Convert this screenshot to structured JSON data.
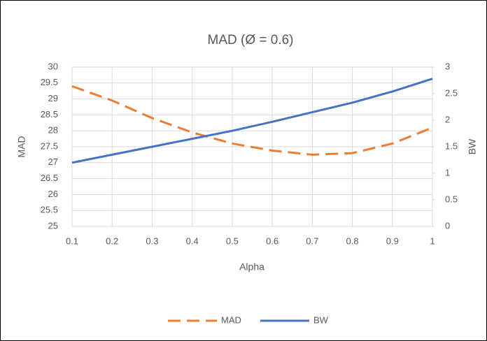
{
  "chart_data": {
    "type": "line",
    "title": "MAD (Ø = 0.6)",
    "x_label": "Alpha",
    "y_label": "MAD",
    "y2_label": "BW",
    "x": [
      0.1,
      0.2,
      0.3,
      0.4,
      0.5,
      0.6,
      0.7,
      0.8,
      0.9,
      1
    ],
    "xlim": [
      0.1,
      1
    ],
    "xticks": [
      0.1,
      0.2,
      0.3,
      0.4,
      0.5,
      0.6,
      0.7,
      0.8,
      0.9,
      1
    ],
    "ylim": [
      25,
      30
    ],
    "yticks": [
      25,
      25.5,
      26,
      26.5,
      27,
      27.5,
      28,
      28.5,
      29,
      29.5,
      30
    ],
    "y2lim": [
      0,
      3
    ],
    "y2ticks": [
      0,
      0.5,
      1,
      1.5,
      2,
      2.5,
      3
    ],
    "grid": true,
    "legend": "bottom",
    "series": [
      {
        "name": "MAD",
        "color": "#ED7D31",
        "dashed": true,
        "values": [
          29.4,
          28.95,
          28.4,
          27.95,
          27.6,
          27.38,
          27.25,
          27.3,
          27.6,
          28.1
        ]
      },
      {
        "name": "BW",
        "color": "#4472C4",
        "axis": "y2",
        "values": [
          1.2,
          1.35,
          1.5,
          1.65,
          1.8,
          1.97,
          2.15,
          2.33,
          2.54,
          2.78
        ]
      }
    ]
  }
}
